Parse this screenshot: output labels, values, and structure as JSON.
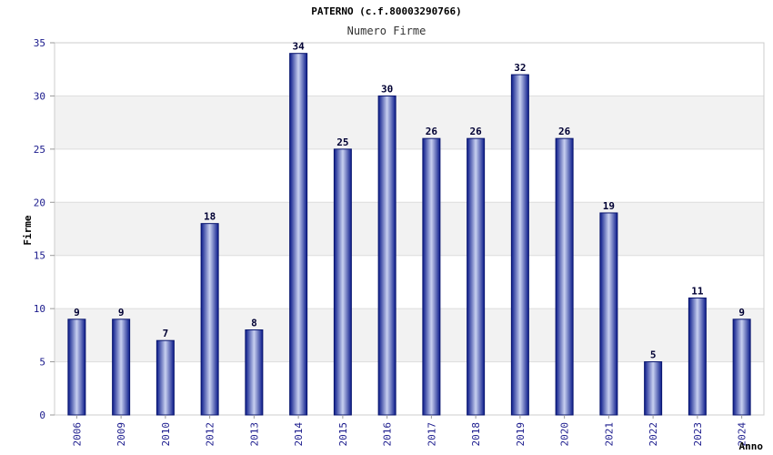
{
  "chart_data": {
    "type": "bar",
    "title": "PATERNO (c.f.80003290766)",
    "subtitle": "Numero Firme",
    "xlabel": "Anno",
    "ylabel": "Firme",
    "categories": [
      "2006",
      "2009",
      "2010",
      "2012",
      "2013",
      "2014",
      "2015",
      "2016",
      "2017",
      "2018",
      "2019",
      "2020",
      "2021",
      "2022",
      "2023",
      "2024"
    ],
    "values": [
      9,
      9,
      7,
      18,
      8,
      34,
      25,
      30,
      26,
      26,
      32,
      26,
      19,
      5,
      11,
      9
    ],
    "ylim": [
      0,
      35
    ],
    "yticks": [
      0,
      5,
      10,
      15,
      20,
      25,
      30,
      35
    ],
    "grid": true,
    "colors": {
      "bar_dark": "#0a1a8a",
      "bar_light": "#c8d0f0",
      "band": "#f2f2f2",
      "grid": "#dddddd",
      "tick_text": "#1a1a8c"
    }
  }
}
